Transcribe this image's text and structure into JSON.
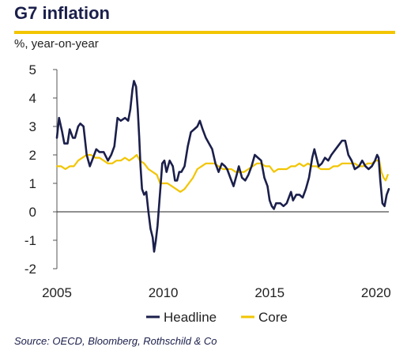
{
  "header": {
    "title": "G7 inflation",
    "subtitle": "%, year-on-year"
  },
  "source": "Source: OECD, Bloomberg, Rothschild & Co",
  "colors": {
    "headline": "#1b1f4b",
    "core": "#f2c500",
    "accent": "#f2c500"
  },
  "chart_data": {
    "type": "line",
    "title": "",
    "xlabel": "",
    "ylabel": "",
    "xlim": [
      2005.0,
      2020.6
    ],
    "ylim": [
      -2,
      5
    ],
    "x_ticks": [
      "2005",
      "2010",
      "2015",
      "2020"
    ],
    "y_ticks": [
      "-2",
      "-1",
      "0",
      "1",
      "2",
      "3",
      "4",
      "5"
    ],
    "grid": false,
    "zero_line": true,
    "legend_position": "bottom",
    "series": [
      {
        "name": "Headline",
        "color": "#1b1f4b",
        "points": [
          [
            2005.0,
            2.6
          ],
          [
            2005.1,
            3.3
          ],
          [
            2005.25,
            2.8
          ],
          [
            2005.35,
            2.4
          ],
          [
            2005.5,
            2.4
          ],
          [
            2005.6,
            2.9
          ],
          [
            2005.75,
            2.6
          ],
          [
            2005.85,
            2.6
          ],
          [
            2006.0,
            3.0
          ],
          [
            2006.1,
            3.1
          ],
          [
            2006.25,
            3.0
          ],
          [
            2006.4,
            2.0
          ],
          [
            2006.55,
            1.6
          ],
          [
            2006.7,
            1.9
          ],
          [
            2006.85,
            2.2
          ],
          [
            2007.0,
            2.1
          ],
          [
            2007.2,
            2.1
          ],
          [
            2007.4,
            1.8
          ],
          [
            2007.55,
            2.0
          ],
          [
            2007.7,
            2.3
          ],
          [
            2007.85,
            3.3
          ],
          [
            2008.0,
            3.2
          ],
          [
            2008.2,
            3.3
          ],
          [
            2008.35,
            3.2
          ],
          [
            2008.45,
            3.6
          ],
          [
            2008.55,
            4.3
          ],
          [
            2008.62,
            4.6
          ],
          [
            2008.72,
            4.4
          ],
          [
            2008.8,
            3.6
          ],
          [
            2008.87,
            2.6
          ],
          [
            2008.93,
            1.6
          ],
          [
            2009.0,
            0.8
          ],
          [
            2009.1,
            0.6
          ],
          [
            2009.2,
            0.7
          ],
          [
            2009.3,
            0.0
          ],
          [
            2009.4,
            -0.6
          ],
          [
            2009.5,
            -0.9
          ],
          [
            2009.57,
            -1.4
          ],
          [
            2009.65,
            -1.0
          ],
          [
            2009.73,
            -0.5
          ],
          [
            2009.85,
            0.7
          ],
          [
            2009.95,
            1.7
          ],
          [
            2010.05,
            1.8
          ],
          [
            2010.15,
            1.4
          ],
          [
            2010.3,
            1.8
          ],
          [
            2010.45,
            1.6
          ],
          [
            2010.55,
            1.1
          ],
          [
            2010.65,
            1.1
          ],
          [
            2010.75,
            1.4
          ],
          [
            2010.85,
            1.4
          ],
          [
            2011.0,
            1.6
          ],
          [
            2011.15,
            2.3
          ],
          [
            2011.3,
            2.8
          ],
          [
            2011.45,
            2.9
          ],
          [
            2011.6,
            3.0
          ],
          [
            2011.72,
            3.2
          ],
          [
            2011.85,
            2.9
          ],
          [
            2012.0,
            2.6
          ],
          [
            2012.15,
            2.4
          ],
          [
            2012.3,
            2.2
          ],
          [
            2012.45,
            1.7
          ],
          [
            2012.6,
            1.4
          ],
          [
            2012.75,
            1.7
          ],
          [
            2012.9,
            1.6
          ],
          [
            2013.0,
            1.5
          ],
          [
            2013.15,
            1.2
          ],
          [
            2013.3,
            0.9
          ],
          [
            2013.45,
            1.3
          ],
          [
            2013.55,
            1.6
          ],
          [
            2013.7,
            1.2
          ],
          [
            2013.85,
            1.1
          ],
          [
            2014.0,
            1.3
          ],
          [
            2014.15,
            1.6
          ],
          [
            2014.3,
            2.0
          ],
          [
            2014.45,
            1.9
          ],
          [
            2014.6,
            1.8
          ],
          [
            2014.75,
            1.2
          ],
          [
            2014.9,
            0.9
          ],
          [
            2015.0,
            0.4
          ],
          [
            2015.1,
            0.2
          ],
          [
            2015.2,
            0.1
          ],
          [
            2015.3,
            0.3
          ],
          [
            2015.5,
            0.3
          ],
          [
            2015.65,
            0.2
          ],
          [
            2015.8,
            0.3
          ],
          [
            2016.0,
            0.7
          ],
          [
            2016.1,
            0.4
          ],
          [
            2016.25,
            0.6
          ],
          [
            2016.4,
            0.6
          ],
          [
            2016.55,
            0.5
          ],
          [
            2016.7,
            0.8
          ],
          [
            2016.85,
            1.2
          ],
          [
            2017.0,
            1.9
          ],
          [
            2017.1,
            2.2
          ],
          [
            2017.2,
            1.9
          ],
          [
            2017.3,
            1.6
          ],
          [
            2017.45,
            1.7
          ],
          [
            2017.6,
            1.9
          ],
          [
            2017.75,
            1.8
          ],
          [
            2017.9,
            2.0
          ],
          [
            2018.0,
            2.1
          ],
          [
            2018.2,
            2.3
          ],
          [
            2018.4,
            2.5
          ],
          [
            2018.55,
            2.5
          ],
          [
            2018.7,
            2.0
          ],
          [
            2018.85,
            1.8
          ],
          [
            2019.0,
            1.5
          ],
          [
            2019.2,
            1.6
          ],
          [
            2019.35,
            1.8
          ],
          [
            2019.5,
            1.6
          ],
          [
            2019.65,
            1.5
          ],
          [
            2019.8,
            1.6
          ],
          [
            2019.95,
            1.8
          ],
          [
            2020.05,
            2.0
          ],
          [
            2020.12,
            1.9
          ],
          [
            2020.2,
            1.1
          ],
          [
            2020.3,
            0.3
          ],
          [
            2020.4,
            0.2
          ],
          [
            2020.5,
            0.6
          ],
          [
            2020.6,
            0.8
          ]
        ]
      },
      {
        "name": "Core",
        "color": "#f2c500",
        "points": [
          [
            2005.0,
            1.6
          ],
          [
            2005.2,
            1.6
          ],
          [
            2005.4,
            1.5
          ],
          [
            2005.6,
            1.6
          ],
          [
            2005.8,
            1.6
          ],
          [
            2006.0,
            1.8
          ],
          [
            2006.2,
            1.9
          ],
          [
            2006.4,
            2.0
          ],
          [
            2006.6,
            2.0
          ],
          [
            2006.8,
            1.9
          ],
          [
            2007.0,
            1.9
          ],
          [
            2007.2,
            1.8
          ],
          [
            2007.4,
            1.7
          ],
          [
            2007.6,
            1.7
          ],
          [
            2007.8,
            1.8
          ],
          [
            2008.0,
            1.8
          ],
          [
            2008.2,
            1.9
          ],
          [
            2008.4,
            1.8
          ],
          [
            2008.6,
            1.9
          ],
          [
            2008.75,
            2.0
          ],
          [
            2008.9,
            1.8
          ],
          [
            2009.1,
            1.7
          ],
          [
            2009.3,
            1.5
          ],
          [
            2009.5,
            1.4
          ],
          [
            2009.7,
            1.3
          ],
          [
            2009.85,
            1.0
          ],
          [
            2010.0,
            1.0
          ],
          [
            2010.2,
            1.0
          ],
          [
            2010.4,
            0.9
          ],
          [
            2010.6,
            0.8
          ],
          [
            2010.8,
            0.7
          ],
          [
            2011.0,
            0.8
          ],
          [
            2011.2,
            1.0
          ],
          [
            2011.4,
            1.2
          ],
          [
            2011.6,
            1.5
          ],
          [
            2011.8,
            1.6
          ],
          [
            2012.0,
            1.7
          ],
          [
            2012.2,
            1.7
          ],
          [
            2012.4,
            1.7
          ],
          [
            2012.6,
            1.6
          ],
          [
            2012.8,
            1.5
          ],
          [
            2013.0,
            1.5
          ],
          [
            2013.2,
            1.5
          ],
          [
            2013.4,
            1.4
          ],
          [
            2013.6,
            1.4
          ],
          [
            2013.8,
            1.4
          ],
          [
            2014.0,
            1.5
          ],
          [
            2014.2,
            1.6
          ],
          [
            2014.4,
            1.7
          ],
          [
            2014.6,
            1.7
          ],
          [
            2014.8,
            1.6
          ],
          [
            2015.0,
            1.6
          ],
          [
            2015.2,
            1.4
          ],
          [
            2015.4,
            1.5
          ],
          [
            2015.6,
            1.5
          ],
          [
            2015.8,
            1.5
          ],
          [
            2016.0,
            1.6
          ],
          [
            2016.2,
            1.6
          ],
          [
            2016.4,
            1.7
          ],
          [
            2016.6,
            1.6
          ],
          [
            2016.8,
            1.7
          ],
          [
            2017.0,
            1.6
          ],
          [
            2017.2,
            1.6
          ],
          [
            2017.4,
            1.5
          ],
          [
            2017.6,
            1.5
          ],
          [
            2017.8,
            1.5
          ],
          [
            2018.0,
            1.6
          ],
          [
            2018.2,
            1.6
          ],
          [
            2018.4,
            1.7
          ],
          [
            2018.6,
            1.7
          ],
          [
            2018.8,
            1.7
          ],
          [
            2019.0,
            1.7
          ],
          [
            2019.2,
            1.6
          ],
          [
            2019.4,
            1.6
          ],
          [
            2019.6,
            1.7
          ],
          [
            2019.8,
            1.7
          ],
          [
            2020.0,
            1.8
          ],
          [
            2020.15,
            1.8
          ],
          [
            2020.25,
            1.4
          ],
          [
            2020.35,
            1.2
          ],
          [
            2020.45,
            1.1
          ],
          [
            2020.55,
            1.3
          ]
        ]
      }
    ]
  }
}
